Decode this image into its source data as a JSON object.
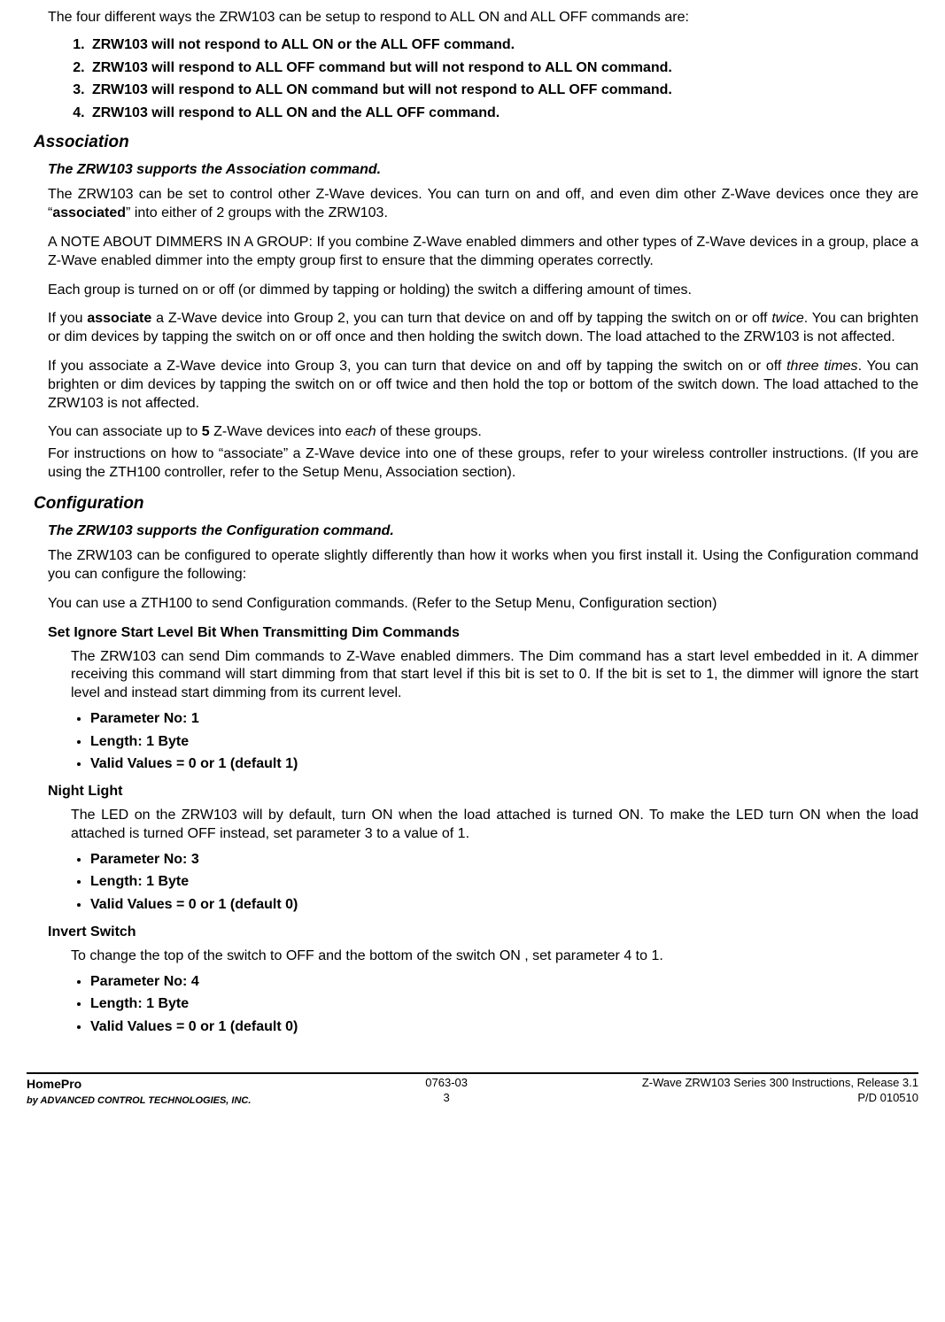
{
  "intro": "The four different ways the ZRW103 can be setup to respond to ALL ON and ALL OFF commands are:",
  "setup_modes": [
    "ZRW103 will not respond to ALL ON or the ALL OFF command.",
    "ZRW103 will respond to ALL OFF command but will not respond to ALL ON command.",
    "ZRW103 will respond to ALL ON command but will not respond to ALL OFF command.",
    "ZRW103 will respond to ALL ON and the ALL OFF command."
  ],
  "association": {
    "header": "Association",
    "supports": "The ZRW103 supports the Association command.",
    "p1a": "The ZRW103 can be set to control other Z-Wave devices. You can turn on and off, and even dim other Z-Wave devices once they are “",
    "p1b": "associated",
    "p1c": "” into either of 2 groups with the ZRW103.",
    "p2": "A NOTE ABOUT DIMMERS IN A GROUP:  If you combine Z-Wave enabled dimmers and other types of Z-Wave devices in a group, place a Z-Wave enabled dimmer into the empty group first to ensure that the dimming operates correctly.",
    "p3": "Each group is turned on or off (or dimmed by tapping or holding) the switch a differing amount of times.",
    "p4a": "If you ",
    "p4b": "associate",
    "p4c": " a Z-Wave device into Group 2, you can turn that device on and off by tapping the switch on or off ",
    "p4d": "twice",
    "p4e": ". You can brighten or dim devices by tapping the switch on or off once and then holding the switch down. The load attached to the ZRW103 is not affected.",
    "p5a": "If you associate a Z-Wave device into Group 3, you can turn that device on and off by tapping the switch on or off ",
    "p5b": "three times",
    "p5c": ". You can brighten or dim devices by tapping the switch on or off twice and then hold the top or bottom of the switch down. The load attached to the ZRW103 is not affected.",
    "p6a": "You can associate up to ",
    "p6b": "5",
    "p6c": " Z-Wave devices into ",
    "p6d": "each",
    "p6e": " of these groups.",
    "p7": "For instructions on how to  “associate” a Z-Wave device into one of these groups, refer to your wireless controller instructions. (If you are using the ZTH100 controller, refer to the Setup Menu, Association section)."
  },
  "configuration": {
    "header": "Configuration",
    "supports": "The ZRW103 supports the Configuration command.",
    "p1": "The ZRW103 can be configured to operate slightly differently than how it works when you first install it. Using the Configuration command you can configure the following:",
    "p2": "You can use a ZTH100 to send Configuration commands. (Refer to the Setup Menu, Configuration section)",
    "items": [
      {
        "title": "Set Ignore Start Level Bit When Transmitting Dim Commands",
        "body": "The ZRW103 can send Dim commands to Z-Wave enabled dimmers. The Dim command has a start level embedded in it.  A dimmer receiving this command will start dimming from that start level if this bit is set to 0. If the bit is set to 1, the dimmer will ignore the start level and instead start dimming from its current level.",
        "params": [
          "Parameter No: 1",
          "Length: 1 Byte",
          "Valid Values  = 0 or 1 (default 1)"
        ]
      },
      {
        "title": "Night Light",
        "body": "The LED on the ZRW103 will by default, turn ON when the load attached is turned ON. To make the LED turn ON when the load attached is turned OFF instead, set parameter 3 to a value of 1.",
        "params": [
          "Parameter No: 3",
          "Length: 1 Byte",
          "Valid Values = 0 or 1 (default 0)"
        ]
      },
      {
        "title": "Invert Switch",
        "body": "To change the top of the switch to OFF and the bottom of the switch ON , set parameter 4 to 1.",
        "params": [
          "Parameter No: 4",
          "Length: 1 Byte",
          "Valid Values = 0 or 1 (default 0)"
        ]
      }
    ]
  },
  "footer": {
    "brand": "HomePro",
    "byline": "by ADVANCED CONTROL TECHNOLOGIES, INC.",
    "doc_no": "0763-03",
    "page": "3",
    "title": "Z-Wave ZRW103 Series 300 Instructions, Release 3.1",
    "pd": "P/D 010510"
  }
}
